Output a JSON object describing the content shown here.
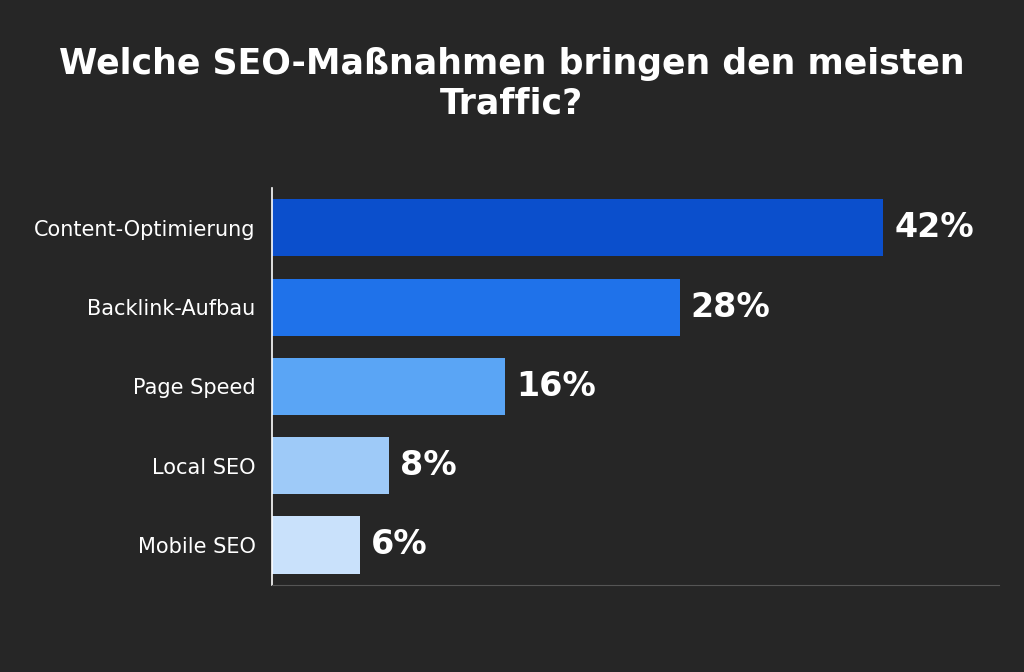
{
  "chart_data": {
    "type": "bar",
    "orientation": "horizontal",
    "title": "Welche SEO-Maßnahmen bringen den meisten Traffic?",
    "categories": [
      "Content-Optimierung",
      "Backlink-Aufbau",
      "Page Speed",
      "Local SEO",
      "Mobile SEO"
    ],
    "values": [
      42,
      28,
      16,
      8,
      6
    ],
    "value_labels": [
      "42%",
      "28%",
      "16%",
      "8%",
      "6%"
    ],
    "colors": [
      "#0b4fcc",
      "#1f72ea",
      "#5aa5f5",
      "#9ecaf8",
      "#c9e1fb"
    ],
    "xlim": [
      0,
      50
    ],
    "xticks": [],
    "data_labels": true,
    "tick_labels": "y",
    "grid": false
  }
}
